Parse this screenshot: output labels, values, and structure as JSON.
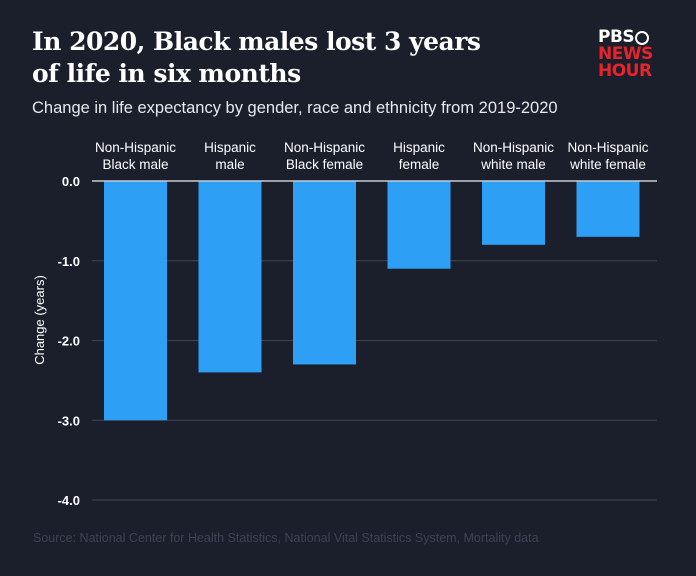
{
  "header": {
    "title": "In 2020, Black males lost 3 years of life in six months",
    "subtitle": "Change in life expectancy by gender, race and ethnicity from 2019-2020"
  },
  "logo": {
    "line1": "PBS",
    "line2": "NEWS",
    "line3": "HOUR",
    "icon": "pbs-head-icon"
  },
  "footer": {
    "source": "Source: National Center for Health Statistics, National Vital Statistics System, Mortality data"
  },
  "colors": {
    "background": "#1b1f2b",
    "bar": "#2d9ff5",
    "grid": "#3a3f4f",
    "zero_line": "#c8cbd3",
    "logo_red": "#e8232b"
  },
  "chart_data": {
    "type": "bar",
    "title": "In 2020, Black males lost 3 years of life in six months",
    "subtitle": "Change in life expectancy by gender, race and ethnicity from 2019-2020",
    "xlabel": "",
    "ylabel": "Change (years)",
    "categories": [
      [
        "Non-Hispanic",
        "Black male"
      ],
      [
        "Hispanic",
        "male"
      ],
      [
        "Non-Hispanic",
        "Black female"
      ],
      [
        "Hispanic",
        "female"
      ],
      [
        "Non-Hispanic",
        "white male"
      ],
      [
        "Non-Hispanic",
        "white female"
      ]
    ],
    "values": [
      -3.0,
      -2.4,
      -2.3,
      -1.1,
      -0.8,
      -0.7
    ],
    "ylim": [
      -4.0,
      0.0
    ],
    "yticks": [
      0.0,
      -1.0,
      -2.0,
      -3.0,
      -4.0
    ],
    "ytick_labels": [
      "0.0",
      "-1.0",
      "-2.0",
      "-3.0",
      "-4.0"
    ],
    "category_axis": "top",
    "grid": true,
    "legend": "none",
    "source": "Source: National Center for Health Statistics, National Vital Statistics System, Mortality data"
  }
}
